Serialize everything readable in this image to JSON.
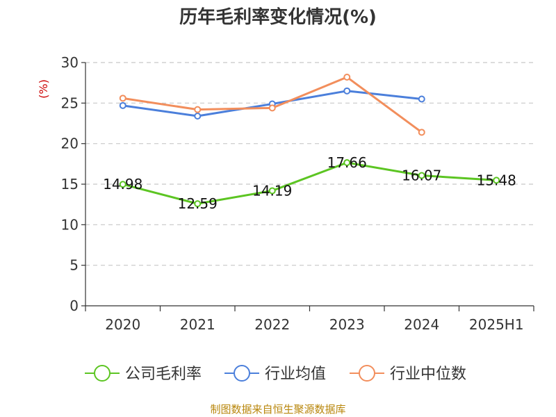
{
  "source": "制图数据来自恒生聚源数据库",
  "chart_data": {
    "type": "line",
    "title": "历年毛利率变化情况(%)",
    "ylabel": "(%)",
    "xlabel": "",
    "categories": [
      "2020",
      "2021",
      "2022",
      "2023",
      "2024",
      "2025H1"
    ],
    "ylim": [
      0,
      30
    ],
    "yticks": [
      0,
      5,
      10,
      15,
      20,
      25,
      30
    ],
    "grid": true,
    "legend_position": "bottom",
    "series": [
      {
        "name": "公司毛利率",
        "color": "#5cc522",
        "values": [
          14.98,
          12.59,
          14.19,
          17.66,
          16.07,
          15.48
        ],
        "labels": [
          "14.98",
          "12.59",
          "14.19",
          "17.66",
          "16.07",
          "15.48"
        ]
      },
      {
        "name": "行业均值",
        "color": "#4b7fdb",
        "values": [
          24.7,
          23.4,
          24.9,
          26.5,
          25.5,
          null
        ]
      },
      {
        "name": "行业中位数",
        "color": "#f28e5c",
        "values": [
          25.6,
          24.2,
          24.4,
          28.2,
          21.4,
          null
        ]
      }
    ],
    "colors": {
      "ylabel": "#cc0000",
      "grid": "#c8c8c8",
      "axis": "#333333"
    }
  }
}
